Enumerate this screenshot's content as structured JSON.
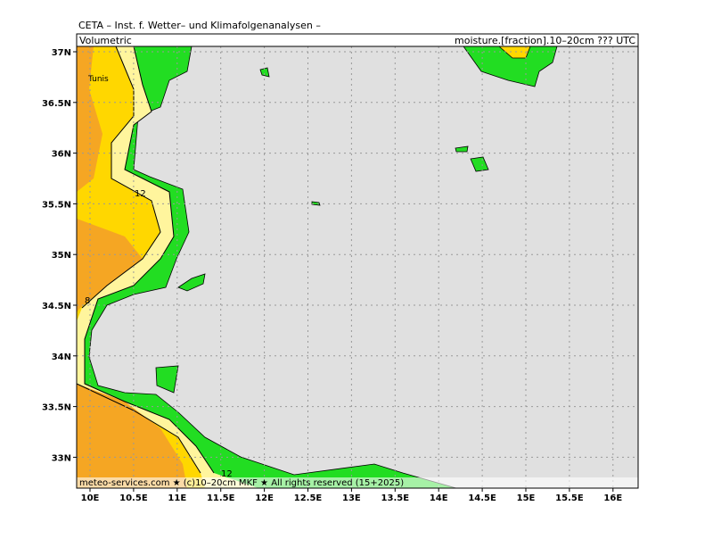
{
  "header": {
    "org": "CETA – Inst. f. Wetter– und Klimafolgenanalysen –",
    "left": "Volumetric",
    "right": "moisture.[fraction].10–20cm ??? UTC"
  },
  "footer": "meteo-services.com ★ (c)10–20cm MKF ★ All rights reserved (15+2025)",
  "places": {
    "city": "Tunis"
  },
  "contour_labels": [
    "12",
    "8",
    "12"
  ],
  "lat_labels": [
    "37N",
    "36.5N",
    "36N",
    "35.5N",
    "35N",
    "34.5N",
    "34N",
    "33.5N",
    "33N"
  ],
  "lon_labels": [
    "10E",
    "10.5E",
    "11E",
    "11.5E",
    "12E",
    "12.5E",
    "13E",
    "13.5E",
    "14E",
    "14.5E",
    "15E",
    "15.5E",
    "16E"
  ]
}
